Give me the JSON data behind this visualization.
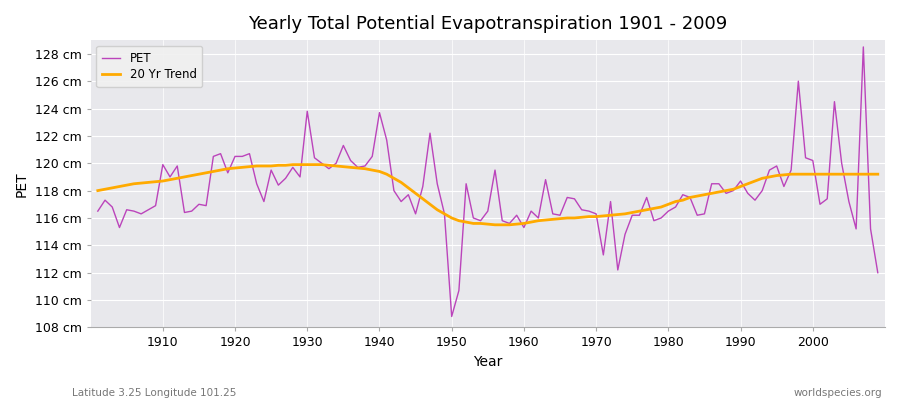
{
  "title": "Yearly Total Potential Evapotranspiration 1901 - 2009",
  "xlabel": "Year",
  "ylabel": "PET",
  "bottom_left_label": "Latitude 3.25 Longitude 101.25",
  "bottom_right_label": "worldspecies.org",
  "ylim": [
    108,
    129
  ],
  "yticks": [
    108,
    110,
    112,
    114,
    116,
    118,
    120,
    122,
    124,
    126,
    128
  ],
  "pet_color": "#bb44bb",
  "trend_color": "#ffaa00",
  "bg_color": "#e8e8ec",
  "pet_label": "PET",
  "trend_label": "20 Yr Trend",
  "years": [
    1901,
    1902,
    1903,
    1904,
    1905,
    1906,
    1907,
    1908,
    1909,
    1910,
    1911,
    1912,
    1913,
    1914,
    1915,
    1916,
    1917,
    1918,
    1919,
    1920,
    1921,
    1922,
    1923,
    1924,
    1925,
    1926,
    1927,
    1928,
    1929,
    1930,
    1931,
    1932,
    1933,
    1934,
    1935,
    1936,
    1937,
    1938,
    1939,
    1940,
    1941,
    1942,
    1943,
    1944,
    1945,
    1946,
    1947,
    1948,
    1949,
    1950,
    1951,
    1952,
    1953,
    1954,
    1955,
    1956,
    1957,
    1958,
    1959,
    1960,
    1961,
    1962,
    1963,
    1964,
    1965,
    1966,
    1967,
    1968,
    1969,
    1970,
    1971,
    1972,
    1973,
    1974,
    1975,
    1976,
    1977,
    1978,
    1979,
    1980,
    1981,
    1982,
    1983,
    1984,
    1985,
    1986,
    1987,
    1988,
    1989,
    1990,
    1991,
    1992,
    1993,
    1994,
    1995,
    1996,
    1997,
    1998,
    1999,
    2000,
    2001,
    2002,
    2003,
    2004,
    2005,
    2006,
    2007,
    2008,
    2009
  ],
  "pet_values": [
    116.5,
    117.3,
    116.8,
    115.3,
    116.6,
    116.5,
    116.3,
    116.6,
    116.9,
    119.9,
    119.0,
    119.8,
    116.4,
    116.5,
    117.0,
    116.9,
    120.5,
    120.7,
    119.3,
    120.5,
    120.5,
    120.7,
    118.5,
    117.2,
    119.5,
    118.4,
    118.9,
    119.7,
    119.0,
    123.8,
    120.4,
    120.0,
    119.6,
    120.0,
    121.3,
    120.2,
    119.7,
    119.8,
    120.5,
    123.7,
    121.7,
    118.0,
    117.2,
    117.7,
    116.3,
    118.3,
    122.2,
    118.5,
    116.3,
    108.8,
    110.7,
    118.5,
    116.0,
    115.8,
    116.5,
    119.5,
    115.8,
    115.6,
    116.2,
    115.3,
    116.5,
    116.0,
    118.8,
    116.3,
    116.2,
    117.5,
    117.4,
    116.6,
    116.5,
    116.3,
    113.3,
    117.2,
    112.2,
    114.8,
    116.2,
    116.2,
    117.5,
    115.8,
    116.0,
    116.5,
    116.8,
    117.7,
    117.5,
    116.2,
    116.3,
    118.5,
    118.5,
    117.8,
    118.0,
    118.7,
    117.8,
    117.3,
    118.0,
    119.5,
    119.8,
    118.3,
    119.5,
    126.0,
    120.4,
    120.2,
    117.0,
    117.4,
    124.5,
    120.0,
    117.2,
    115.2,
    128.5,
    115.2,
    112.0
  ],
  "trend_values": [
    118.0,
    118.1,
    118.2,
    118.3,
    118.4,
    118.5,
    118.55,
    118.6,
    118.65,
    118.7,
    118.8,
    118.9,
    119.0,
    119.1,
    119.2,
    119.3,
    119.4,
    119.5,
    119.6,
    119.65,
    119.7,
    119.75,
    119.8,
    119.8,
    119.8,
    119.85,
    119.85,
    119.9,
    119.9,
    119.9,
    119.9,
    119.9,
    119.85,
    119.8,
    119.75,
    119.7,
    119.65,
    119.6,
    119.5,
    119.4,
    119.2,
    118.9,
    118.6,
    118.2,
    117.8,
    117.4,
    117.0,
    116.6,
    116.3,
    116.0,
    115.8,
    115.7,
    115.6,
    115.6,
    115.55,
    115.5,
    115.5,
    115.5,
    115.55,
    115.6,
    115.7,
    115.8,
    115.85,
    115.9,
    115.95,
    116.0,
    116.0,
    116.05,
    116.1,
    116.1,
    116.15,
    116.2,
    116.25,
    116.3,
    116.4,
    116.5,
    116.6,
    116.7,
    116.8,
    117.0,
    117.2,
    117.3,
    117.5,
    117.6,
    117.7,
    117.8,
    117.9,
    118.0,
    118.1,
    118.3,
    118.5,
    118.7,
    118.9,
    119.0,
    119.1,
    119.15,
    119.2,
    119.2,
    119.2,
    119.2,
    119.2,
    119.2,
    119.2,
    119.2,
    119.2,
    119.2,
    119.2,
    119.2,
    119.2
  ]
}
